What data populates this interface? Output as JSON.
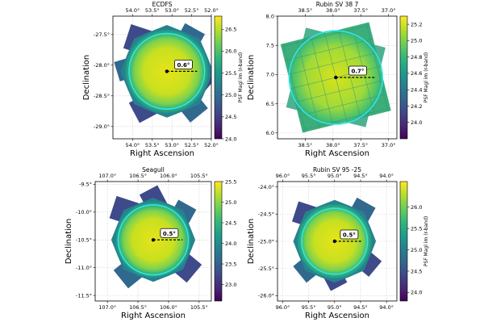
{
  "chart_data": [
    {
      "type": "heatmap",
      "title": "ECDFS",
      "xlabel": "Right Ascension",
      "ylabel": "Declination",
      "x_range": [
        54.5,
        52.0
      ],
      "y_range": [
        -29.2,
        -27.2
      ],
      "x_ticks": [
        54.0,
        53.5,
        53.0,
        52.5,
        52.0
      ],
      "x_tick_labels": [
        "54.0°",
        "53.5°",
        "53.0°",
        "52.5°",
        "52.0°"
      ],
      "y_ticks": [
        -27.5,
        -28.0,
        -28.5,
        -29.0
      ],
      "y_tick_labels": [
        "-27.5°",
        "-28.0°",
        "-28.5°",
        "-29.0°"
      ],
      "center": [
        53.13,
        -28.1
      ],
      "circle_radius_deg": 0.75,
      "footprint_radius_deg": 0.92,
      "tiles": [
        [
          -0.55,
          0.62,
          0.5
        ],
        [
          0.45,
          0.65,
          0.45
        ],
        [
          0.7,
          -0.15,
          0.4
        ],
        [
          0.5,
          -0.7,
          0.45
        ],
        [
          -0.45,
          -0.72,
          0.45
        ],
        [
          -0.8,
          0.05,
          0.4
        ]
      ],
      "scale_label": "0.6°",
      "scale_length_deg": 0.6,
      "colorbar": {
        "label": "PSF Magl im (r-band)",
        "min": 24.0,
        "max": 26.8,
        "ticks": [
          24.0,
          24.5,
          25.0,
          25.5,
          26.0,
          26.5
        ],
        "tick_labels": [
          "24.0",
          "24.5",
          "25.0",
          "25.5",
          "26.0",
          "26.5"
        ]
      }
    },
    {
      "type": "heatmap",
      "title": "Rubin SV 38 7",
      "xlabel": "Right Ascension",
      "ylabel": "Declination",
      "x_range": [
        39.0,
        36.85
      ],
      "y_range": [
        5.9,
        8.0
      ],
      "x_ticks": [
        38.5,
        38.0,
        37.5,
        37.0
      ],
      "x_tick_labels": [
        "38.5°",
        "38.0°",
        "37.5°",
        "37.0°"
      ],
      "y_ticks": [
        6.0,
        6.5,
        7.0,
        7.5,
        8.0
      ],
      "y_tick_labels": [
        "6.0",
        "6.5",
        "7.0",
        "7.5",
        "8.0"
      ],
      "center": [
        37.95,
        6.95
      ],
      "circle_radius_deg": 0.82,
      "square_half_deg": 0.8,
      "square_rotation_deg": 14,
      "scale_label": "0.7°",
      "scale_length_deg": 0.7,
      "colorbar": {
        "label": "PSF Magl im (r-band)",
        "min": 23.8,
        "max": 25.3,
        "ticks": [
          24.0,
          24.2,
          24.4,
          24.6,
          24.8,
          25.0,
          25.2
        ],
        "tick_labels": [
          "24.0",
          "24.2",
          "24.4",
          "24.6",
          "24.8",
          "25.0",
          "25.2"
        ]
      }
    },
    {
      "type": "heatmap",
      "title": "Seagull",
      "xlabel": "Right Ascension",
      "ylabel": "Declination",
      "x_range": [
        107.2,
        105.3
      ],
      "y_range": [
        -11.6,
        -9.45
      ],
      "x_ticks": [
        107.0,
        106.5,
        106.0,
        105.5
      ],
      "x_tick_labels": [
        "107.0°",
        "106.5°",
        "106.0°",
        "105.5°"
      ],
      "y_ticks": [
        -9.5,
        -10.0,
        -10.5,
        -11.0,
        -11.5
      ],
      "y_tick_labels": [
        "-9.5°",
        "-10.0°",
        "-10.5°",
        "-11.0°",
        "-11.5°"
      ],
      "center": [
        106.25,
        -10.5
      ],
      "circle_radius_deg": 0.6,
      "footprint_radius_deg": 0.72,
      "tiles": [
        [
          -0.5,
          0.5,
          0.4
        ],
        [
          0.5,
          0.45,
          0.35
        ],
        [
          0.55,
          -0.45,
          0.4
        ],
        [
          -0.4,
          -0.55,
          0.4
        ],
        [
          0.0,
          0.7,
          0.35
        ]
      ],
      "scale_label": "0.5°",
      "scale_length_deg": 0.5,
      "colorbar": {
        "label": "",
        "min": 22.6,
        "max": 25.5,
        "ticks": [
          23.0,
          23.5,
          24.0,
          24.5,
          25.0,
          25.5
        ],
        "tick_labels": [
          "23.0",
          "23.5",
          "24.0",
          "24.5",
          "25.0",
          "25.5"
        ]
      }
    },
    {
      "type": "heatmap",
      "title": "Rubin SV 95 -25",
      "xlabel": "Right Ascension",
      "ylabel": "Declination",
      "x_range": [
        96.1,
        93.8
      ],
      "y_range": [
        -26.1,
        -23.9
      ],
      "x_ticks": [
        96.0,
        95.5,
        95.0,
        94.5,
        94.0
      ],
      "x_tick_labels": [
        "96.0°",
        "95.5°",
        "95.0°",
        "94.5°",
        "94.0°"
      ],
      "y_ticks": [
        -24.0,
        -24.5,
        -25.0,
        -25.5,
        -26.0
      ],
      "y_tick_labels": [
        "-24.0°",
        "-24.5°",
        "-25.0°",
        "-25.5°",
        "-26.0°"
      ],
      "center": [
        95.0,
        -25.0
      ],
      "circle_radius_deg": 0.62,
      "footprint_radius_deg": 0.78,
      "tiles": [
        [
          -0.55,
          0.5,
          0.4
        ],
        [
          0.5,
          0.55,
          0.4
        ],
        [
          0.62,
          -0.4,
          0.38
        ],
        [
          -0.5,
          -0.5,
          0.4
        ],
        [
          0.0,
          -0.7,
          0.35
        ]
      ],
      "scale_label": "0.5°",
      "scale_length_deg": 0.5,
      "colorbar": {
        "label": "PSF Magl im (r-band)",
        "min": 23.8,
        "max": 26.6,
        "ticks": [
          24.0,
          24.5,
          25.0,
          25.5,
          26.0
        ],
        "tick_labels": [
          "24.0",
          "24.5",
          "25.0",
          "25.5",
          "26.0"
        ]
      }
    }
  ]
}
